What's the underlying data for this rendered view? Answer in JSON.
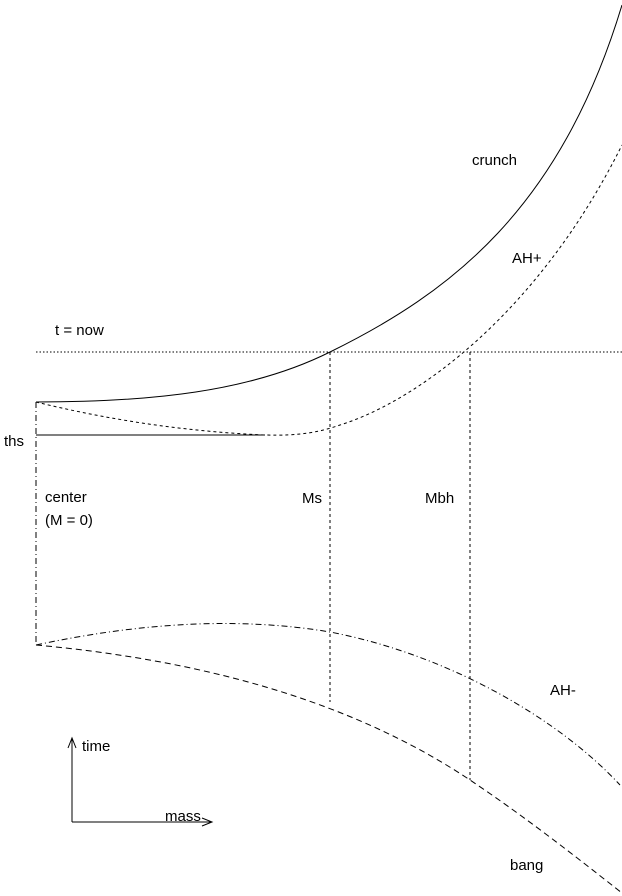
{
  "labels": {
    "crunch": "crunch",
    "ah_plus": "AH+",
    "t_now": "t = now",
    "ths": "ths",
    "center": "center",
    "center_mass": "(M = 0)",
    "ms": "Ms",
    "mbh": "Mbh",
    "ah_minus": "AH-",
    "time": "time",
    "mass": "mass",
    "bang": "bang"
  }
}
